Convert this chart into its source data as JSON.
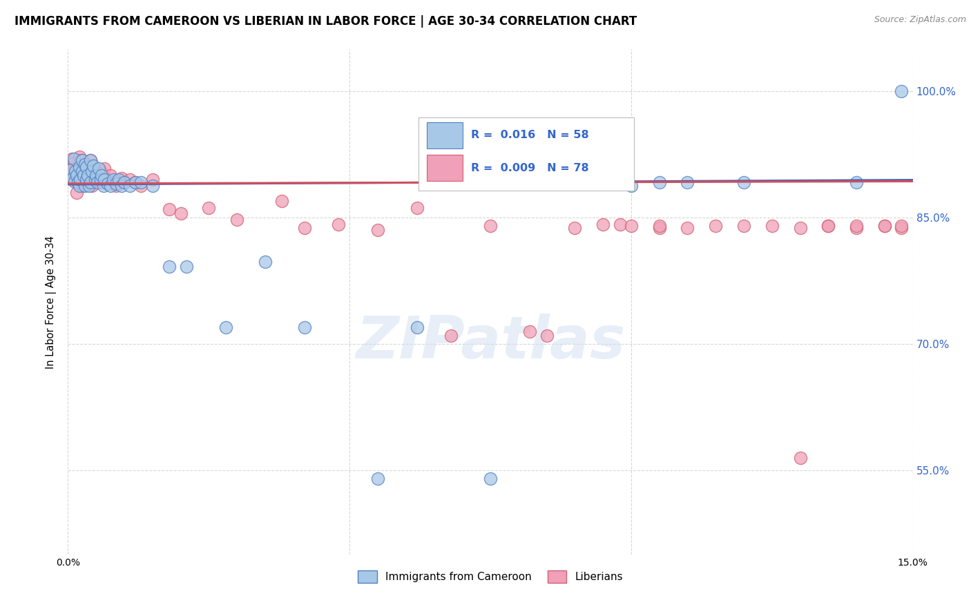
{
  "title": "IMMIGRANTS FROM CAMEROON VS LIBERIAN IN LABOR FORCE | AGE 30-34 CORRELATION CHART",
  "source": "Source: ZipAtlas.com",
  "ylabel": "In Labor Force | Age 30-34",
  "xlim": [
    0.0,
    0.15
  ],
  "ylim": [
    0.45,
    1.05
  ],
  "yticks": [
    0.55,
    0.7,
    0.85,
    1.0
  ],
  "ytick_labels": [
    "55.0%",
    "70.0%",
    "85.0%",
    "100.0%"
  ],
  "xticks": [
    0.0,
    0.05,
    0.1,
    0.15
  ],
  "xtick_labels": [
    "0.0%",
    "",
    "",
    "15.0%"
  ],
  "legend_R1": "R =  0.016   N = 58",
  "legend_R2": "R =  0.009   N = 78",
  "color_blue": "#A8C8E8",
  "color_pink": "#F0A0B8",
  "color_blue_edge": "#5080C0",
  "color_pink_edge": "#D06070",
  "color_blue_line": "#4060B0",
  "color_pink_line": "#D05060",
  "color_legend_text": "#3366CC",
  "color_grid": "#CCCCCC",
  "background": "#FFFFFF",
  "watermark": "ZIPatlas",
  "blue_x": [
    0.0005,
    0.0008,
    0.001,
    0.0012,
    0.0013,
    0.0015,
    0.0018,
    0.002,
    0.002,
    0.0022,
    0.0025,
    0.0025,
    0.0028,
    0.003,
    0.003,
    0.0033,
    0.0033,
    0.0035,
    0.0038,
    0.004,
    0.004,
    0.0042,
    0.0045,
    0.0048,
    0.005,
    0.0052,
    0.0055,
    0.0058,
    0.006,
    0.0063,
    0.0065,
    0.007,
    0.0075,
    0.008,
    0.0085,
    0.009,
    0.0095,
    0.01,
    0.011,
    0.012,
    0.013,
    0.015,
    0.018,
    0.021,
    0.028,
    0.035,
    0.042,
    0.055,
    0.062,
    0.075,
    0.085,
    0.092,
    0.1,
    0.105,
    0.11,
    0.12,
    0.14,
    0.148
  ],
  "blue_y": [
    0.907,
    0.897,
    0.92,
    0.893,
    0.905,
    0.9,
    0.892,
    0.91,
    0.888,
    0.895,
    0.918,
    0.905,
    0.9,
    0.913,
    0.888,
    0.895,
    0.91,
    0.9,
    0.888,
    0.918,
    0.892,
    0.905,
    0.912,
    0.895,
    0.9,
    0.892,
    0.908,
    0.895,
    0.9,
    0.888,
    0.895,
    0.89,
    0.888,
    0.895,
    0.89,
    0.895,
    0.888,
    0.892,
    0.888,
    0.892,
    0.892,
    0.888,
    0.792,
    0.792,
    0.72,
    0.798,
    0.72,
    0.54,
    0.72,
    0.54,
    0.892,
    0.895,
    0.888,
    0.892,
    0.892,
    0.892,
    0.892,
    1.0
  ],
  "pink_x": [
    0.0005,
    0.0007,
    0.0008,
    0.001,
    0.0012,
    0.0013,
    0.0015,
    0.0015,
    0.0018,
    0.002,
    0.002,
    0.0022,
    0.0023,
    0.0025,
    0.0025,
    0.0028,
    0.003,
    0.003,
    0.0033,
    0.0033,
    0.0035,
    0.0035,
    0.0038,
    0.004,
    0.004,
    0.0042,
    0.0042,
    0.0045,
    0.0048,
    0.005,
    0.0055,
    0.0058,
    0.006,
    0.0065,
    0.007,
    0.0075,
    0.008,
    0.0085,
    0.009,
    0.0095,
    0.01,
    0.011,
    0.012,
    0.013,
    0.015,
    0.018,
    0.02,
    0.025,
    0.03,
    0.038,
    0.042,
    0.048,
    0.055,
    0.062,
    0.068,
    0.075,
    0.082,
    0.09,
    0.098,
    0.105,
    0.11,
    0.12,
    0.13,
    0.135,
    0.14,
    0.145,
    0.148,
    0.085,
    0.095,
    0.1,
    0.105,
    0.115,
    0.125,
    0.135,
    0.14,
    0.145,
    0.148,
    0.13
  ],
  "pink_y": [
    0.907,
    0.92,
    0.897,
    0.915,
    0.908,
    0.9,
    0.893,
    0.88,
    0.91,
    0.922,
    0.897,
    0.908,
    0.918,
    0.905,
    0.888,
    0.9,
    0.912,
    0.892,
    0.908,
    0.897,
    0.912,
    0.893,
    0.905,
    0.918,
    0.897,
    0.91,
    0.888,
    0.9,
    0.907,
    0.895,
    0.9,
    0.905,
    0.892,
    0.908,
    0.895,
    0.9,
    0.892,
    0.888,
    0.893,
    0.897,
    0.892,
    0.895,
    0.892,
    0.888,
    0.895,
    0.86,
    0.855,
    0.862,
    0.848,
    0.87,
    0.838,
    0.842,
    0.835,
    0.862,
    0.71,
    0.84,
    0.715,
    0.838,
    0.842,
    0.838,
    0.838,
    0.84,
    0.838,
    0.84,
    0.838,
    0.84,
    0.838,
    0.71,
    0.842,
    0.84,
    0.84,
    0.84,
    0.84,
    0.84,
    0.84,
    0.84,
    0.84,
    0.565
  ]
}
